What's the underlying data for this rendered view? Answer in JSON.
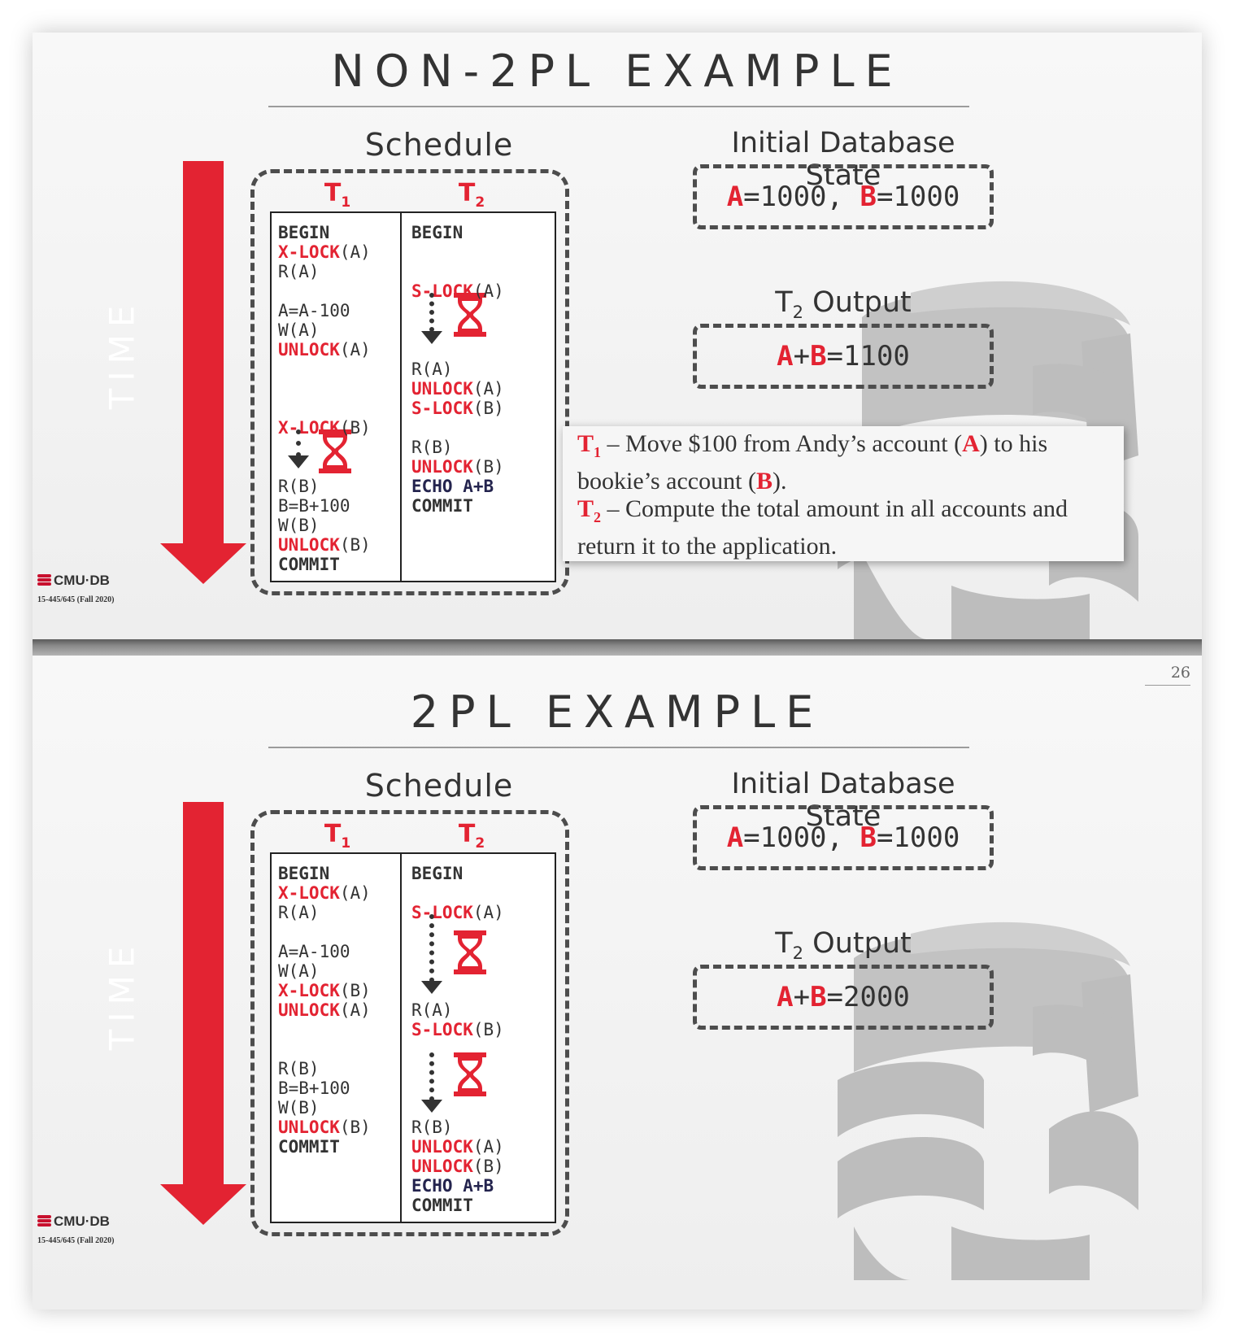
{
  "slide1": {
    "title": "NON-2PL EXAMPLE",
    "schedule_label": "Schedule",
    "time_label": "TIME",
    "t1": "T",
    "t1_sub": "1",
    "t2": "T",
    "t2_sub": "2",
    "t1_ops": [
      {
        "parts": [
          {
            "t": "BEGIN",
            "c": "kw"
          }
        ]
      },
      {
        "parts": [
          {
            "t": "X-LOCK",
            "c": "red"
          },
          {
            "t": "(A)",
            "c": ""
          }
        ]
      },
      {
        "parts": [
          {
            "t": "R(A)",
            "c": ""
          }
        ]
      },
      {
        "parts": [
          {
            "t": "A=A-100",
            "c": ""
          }
        ]
      },
      {
        "parts": [
          {
            "t": "W(A)",
            "c": ""
          }
        ]
      },
      {
        "parts": [
          {
            "t": "UNLOCK",
            "c": "red"
          },
          {
            "t": "(A)",
            "c": ""
          }
        ]
      },
      {
        "parts": [
          {
            "t": "X-LOCK",
            "c": "red"
          },
          {
            "t": "(B)",
            "c": ""
          }
        ]
      },
      {
        "parts": [
          {
            "t": "R(B)",
            "c": ""
          }
        ]
      },
      {
        "parts": [
          {
            "t": "B=B+100",
            "c": ""
          }
        ]
      },
      {
        "parts": [
          {
            "t": "W(B)",
            "c": ""
          }
        ]
      },
      {
        "parts": [
          {
            "t": "UNLOCK",
            "c": "red"
          },
          {
            "t": "(B)",
            "c": ""
          }
        ]
      },
      {
        "parts": [
          {
            "t": "COMMIT",
            "c": "kw"
          }
        ]
      }
    ],
    "t2_ops": [
      {
        "parts": [
          {
            "t": "BEGIN",
            "c": "kw"
          }
        ]
      },
      {
        "parts": [
          {
            "t": "S-LOCK",
            "c": "red"
          },
          {
            "t": "(A)",
            "c": ""
          }
        ]
      },
      {
        "parts": [
          {
            "t": "R(A)",
            "c": ""
          }
        ]
      },
      {
        "parts": [
          {
            "t": "UNLOCK",
            "c": "red"
          },
          {
            "t": "(A)",
            "c": ""
          }
        ]
      },
      {
        "parts": [
          {
            "t": "S-LOCK",
            "c": "red"
          },
          {
            "t": "(B)",
            "c": ""
          }
        ]
      },
      {
        "parts": [
          {
            "t": "R(B)",
            "c": ""
          }
        ]
      },
      {
        "parts": [
          {
            "t": "UNLOCK",
            "c": "red"
          },
          {
            "t": "(B)",
            "c": ""
          }
        ]
      },
      {
        "parts": [
          {
            "t": "ECHO A+B",
            "c": "navy"
          }
        ]
      },
      {
        "parts": [
          {
            "t": "COMMIT",
            "c": "kw"
          }
        ]
      }
    ],
    "initial_state_label": "Initial Database State",
    "initial_state": [
      {
        "t": "A",
        "c": "red"
      },
      {
        "t": "=1000, ",
        "c": ""
      },
      {
        "t": "B",
        "c": "red"
      },
      {
        "t": "=1000",
        "c": ""
      }
    ],
    "output_label_main": "T",
    "output_label_sub": "2",
    "output_label_rest": " Output",
    "output_value": [
      {
        "t": "A",
        "c": "red"
      },
      {
        "t": "+",
        "c": ""
      },
      {
        "t": "B",
        "c": "red"
      },
      {
        "t": "=1100",
        "c": ""
      }
    ],
    "callout": {
      "line1": [
        {
          "t": "T",
          "c": "red"
        },
        {
          "t": "1",
          "c": "sub-red"
        },
        {
          "t": " – Move $100 from Andy’s account (",
          "c": ""
        },
        {
          "t": "A",
          "c": "red"
        },
        {
          "t": ") to his bookie’s account (",
          "c": ""
        },
        {
          "t": "B",
          "c": "red"
        },
        {
          "t": ").",
          "c": ""
        }
      ],
      "line2": [
        {
          "t": "T",
          "c": "red"
        },
        {
          "t": "2",
          "c": "sub-red"
        },
        {
          "t": " – Compute the total amount in all accounts and return it to the application.",
          "c": ""
        }
      ]
    },
    "logo": "CMU·DB",
    "course": "15-445/645 (Fall 2020)"
  },
  "slide2": {
    "page_number": "26",
    "title": "2PL EXAMPLE",
    "schedule_label": "Schedule",
    "time_label": "TIME",
    "t1": "T",
    "t1_sub": "1",
    "t2": "T",
    "t2_sub": "2",
    "t1_ops": [
      {
        "parts": [
          {
            "t": "BEGIN",
            "c": "kw"
          }
        ]
      },
      {
        "parts": [
          {
            "t": "X-LOCK",
            "c": "red"
          },
          {
            "t": "(A)",
            "c": ""
          }
        ]
      },
      {
        "parts": [
          {
            "t": "R(A)",
            "c": ""
          }
        ]
      },
      {
        "parts": [
          {
            "t": "A=A-100",
            "c": ""
          }
        ]
      },
      {
        "parts": [
          {
            "t": "W(A)",
            "c": ""
          }
        ]
      },
      {
        "parts": [
          {
            "t": "X-LOCK",
            "c": "red"
          },
          {
            "t": "(B)",
            "c": ""
          }
        ]
      },
      {
        "parts": [
          {
            "t": "UNLOCK",
            "c": "red"
          },
          {
            "t": "(A)",
            "c": ""
          }
        ]
      },
      {
        "parts": [
          {
            "t": "R(B)",
            "c": ""
          }
        ]
      },
      {
        "parts": [
          {
            "t": "B=B+100",
            "c": ""
          }
        ]
      },
      {
        "parts": [
          {
            "t": "W(B)",
            "c": ""
          }
        ]
      },
      {
        "parts": [
          {
            "t": "UNLOCK",
            "c": "red"
          },
          {
            "t": "(B)",
            "c": ""
          }
        ]
      },
      {
        "parts": [
          {
            "t": "COMMIT",
            "c": "kw"
          }
        ]
      }
    ],
    "t2_ops": [
      {
        "parts": [
          {
            "t": "BEGIN",
            "c": "kw"
          }
        ]
      },
      {
        "parts": [
          {
            "t": "S-LOCK",
            "c": "red"
          },
          {
            "t": "(A)",
            "c": ""
          }
        ]
      },
      {
        "parts": [
          {
            "t": "R(A)",
            "c": ""
          }
        ]
      },
      {
        "parts": [
          {
            "t": "S-LOCK",
            "c": "red"
          },
          {
            "t": "(B)",
            "c": ""
          }
        ]
      },
      {
        "parts": [
          {
            "t": "R(B)",
            "c": ""
          }
        ]
      },
      {
        "parts": [
          {
            "t": "UNLOCK",
            "c": "red"
          },
          {
            "t": "(A)",
            "c": ""
          }
        ]
      },
      {
        "parts": [
          {
            "t": "UNLOCK",
            "c": "red"
          },
          {
            "t": "(B)",
            "c": ""
          }
        ]
      },
      {
        "parts": [
          {
            "t": "ECHO A+B",
            "c": "navy"
          }
        ]
      },
      {
        "parts": [
          {
            "t": "COMMIT",
            "c": "kw"
          }
        ]
      }
    ],
    "initial_state_label": "Initial Database State",
    "initial_state": [
      {
        "t": "A",
        "c": "red"
      },
      {
        "t": "=1000, ",
        "c": ""
      },
      {
        "t": "B",
        "c": "red"
      },
      {
        "t": "=1000",
        "c": ""
      }
    ],
    "output_label_main": "T",
    "output_label_sub": "2",
    "output_label_rest": " Output",
    "output_value": [
      {
        "t": "A",
        "c": "red"
      },
      {
        "t": "+",
        "c": ""
      },
      {
        "t": "B",
        "c": "red"
      },
      {
        "t": "=2000",
        "c": ""
      }
    ],
    "logo": "CMU·DB",
    "course": "15-445/645 (Fall 2020)"
  },
  "colors": {
    "accent_red": "#e32332",
    "dark_text": "#333333",
    "echo_navy": "#24244e"
  },
  "icons": [
    "hourglass-icon",
    "time-arrow",
    "cmu-db-logo-icon",
    "database-cylinder-art"
  ]
}
